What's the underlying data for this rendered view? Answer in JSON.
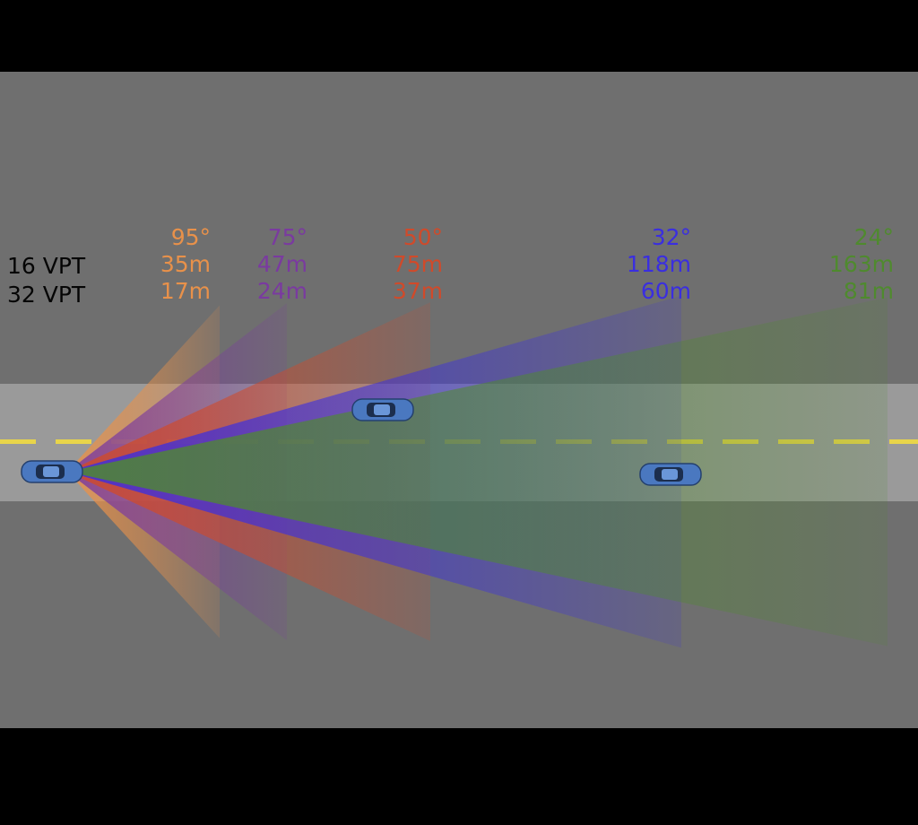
{
  "rows": [
    "16 VPT",
    "32 VPT"
  ],
  "beams": [
    {
      "angle_label": "95°",
      "range_16": "35m",
      "range_32": "17m",
      "color": "#e8914a",
      "fov_deg": 95
    },
    {
      "angle_label": "75°",
      "range_16": "47m",
      "range_32": "24m",
      "color": "#7a3aa0",
      "fov_deg": 75
    },
    {
      "angle_label": "50°",
      "range_16": "75m",
      "range_32": "37m",
      "color": "#d04a2a",
      "fov_deg": 50
    },
    {
      "angle_label": "32°",
      "range_16": "118m",
      "range_32": "60m",
      "color": "#3a2ee0",
      "fov_deg": 32
    },
    {
      "angle_label": "24°",
      "range_16": "163m",
      "range_32": "81m",
      "color": "#4f8a2e",
      "fov_deg": 24
    }
  ],
  "colors": {
    "background": "#6f6f6f",
    "road": "#9a9a9a",
    "lane_marking": "#e8d44a",
    "car": "#4a78c0"
  }
}
